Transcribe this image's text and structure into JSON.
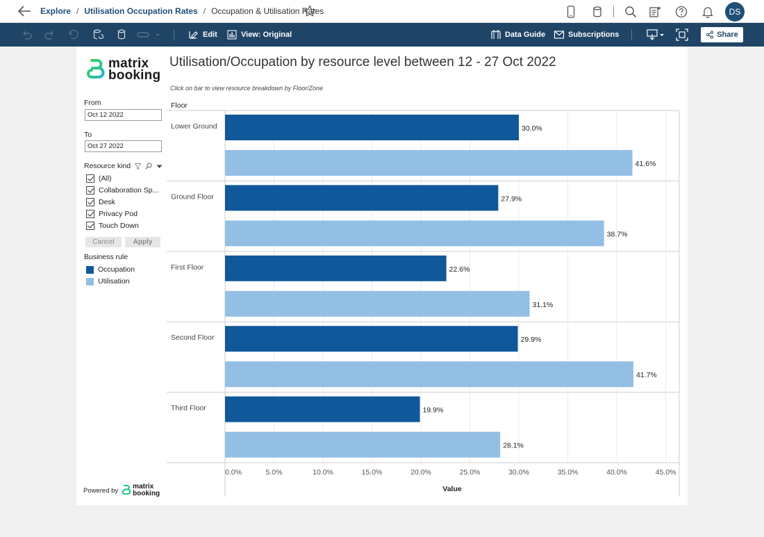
{
  "header": {
    "breadcrumb": [
      "Explore",
      "Utilisation Occupation Rates",
      "Occupation & Utilisation Rates"
    ],
    "avatar_initials": "DS"
  },
  "toolbar": {
    "edit_label": "Edit",
    "view_label": "View: Original",
    "data_guide_label": "Data Guide",
    "subscriptions_label": "Subscriptions",
    "share_label": "Share"
  },
  "dashboard": {
    "logo_text": [
      "matrix",
      "booking"
    ],
    "title": "Utilisation/Occupation by resource level between 12 - 27 Oct 2022",
    "subtitle": "Click on bar to view resource breakdown by Floor/Zone",
    "filters": {
      "from_label": "From",
      "from_value": "Oct 12 2022",
      "to_label": "To",
      "to_value": "Oct 27 2022",
      "resource_kind_label": "Resource kind",
      "resource_options": [
        "(All)",
        "Collaboration Sp...",
        "Desk",
        "Privacy Pod",
        "Touch Down"
      ],
      "cancel_label": "Cancel",
      "apply_label": "Apply"
    },
    "legend": {
      "title": "Business rule",
      "items": [
        "Occupation",
        "Utilisation"
      ]
    },
    "powered_by": "Powered by",
    "powered_logo": [
      "matrix",
      "booking"
    ]
  },
  "colors": {
    "occupation": "#11589a",
    "utilisation": "#93bfe4",
    "toolbar": "#1f4466"
  },
  "chart_data": {
    "type": "bar",
    "orientation": "horizontal",
    "row_header": "Floor",
    "categories": [
      "Lower Ground",
      "Ground Floor",
      "First Floor",
      "Second Floor",
      "Third Floor"
    ],
    "series": [
      {
        "name": "Occupation",
        "values": [
          30.0,
          27.9,
          22.6,
          29.9,
          19.9
        ],
        "labels": [
          "30.0%",
          "27.9%",
          "22.6%",
          "29.9%",
          "19.9%"
        ]
      },
      {
        "name": "Utilisation",
        "values": [
          41.6,
          38.7,
          31.1,
          41.7,
          28.1
        ],
        "labels": [
          "41.6%",
          "38.7%",
          "31.1%",
          "41.7%",
          "28.1%"
        ]
      }
    ],
    "xlabel": "Value",
    "xlim": [
      0,
      46
    ],
    "xticks": [
      0,
      5,
      10,
      15,
      20,
      25,
      30,
      35,
      40,
      45
    ],
    "xtick_labels": [
      "0.0%",
      "5.0%",
      "10.0%",
      "15.0%",
      "20.0%",
      "25.0%",
      "30.0%",
      "35.0%",
      "40.0%",
      "45.0%"
    ],
    "grid": true
  }
}
